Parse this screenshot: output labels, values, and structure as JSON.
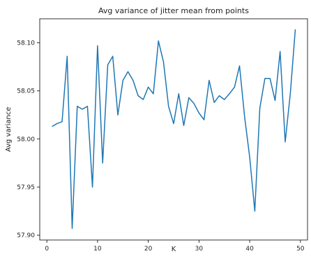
{
  "chart_data": {
    "type": "line",
    "title": "Avg variance of jitter mean from points",
    "xlabel": "K",
    "ylabel": "Avg variance",
    "xlim": [
      -1.4,
      51.4
    ],
    "ylim": [
      57.895,
      58.125
    ],
    "xticks": [
      0,
      10,
      20,
      30,
      40,
      50
    ],
    "yticks": [
      57.9,
      57.95,
      58.0,
      58.05,
      58.1
    ],
    "xtick_labels": [
      "0",
      "10",
      "20",
      "30",
      "40",
      "50"
    ],
    "ytick_labels": [
      "57.90",
      "57.95",
      "58.00",
      "58.05",
      "58.10"
    ],
    "grid": false,
    "line_color": "#1f77b4",
    "series": [
      {
        "x": [
          1,
          2,
          3,
          4,
          5,
          6,
          7,
          8,
          9,
          10,
          11,
          12,
          13,
          14,
          15,
          16,
          17,
          18,
          19,
          20,
          21,
          22,
          23,
          24,
          25,
          26,
          27,
          28,
          29,
          30,
          31,
          32,
          33,
          34,
          35,
          36,
          37,
          38,
          39,
          40,
          41,
          42,
          43,
          44,
          45,
          46,
          47,
          48,
          49
        ],
        "values": [
          58.013,
          58.016,
          58.018,
          58.086,
          57.907,
          58.034,
          58.031,
          58.034,
          57.95,
          58.097,
          57.975,
          58.077,
          58.086,
          58.025,
          58.061,
          58.07,
          58.061,
          58.045,
          58.041,
          58.054,
          58.047,
          58.102,
          58.08,
          58.034,
          58.016,
          58.047,
          58.014,
          58.043,
          58.037,
          58.027,
          58.02,
          58.061,
          58.038,
          58.045,
          58.041,
          58.047,
          58.054,
          58.076,
          58.023,
          57.981,
          57.925,
          58.032,
          58.063,
          58.063,
          58.04,
          58.091,
          57.997,
          58.047,
          58.114
        ]
      }
    ]
  }
}
